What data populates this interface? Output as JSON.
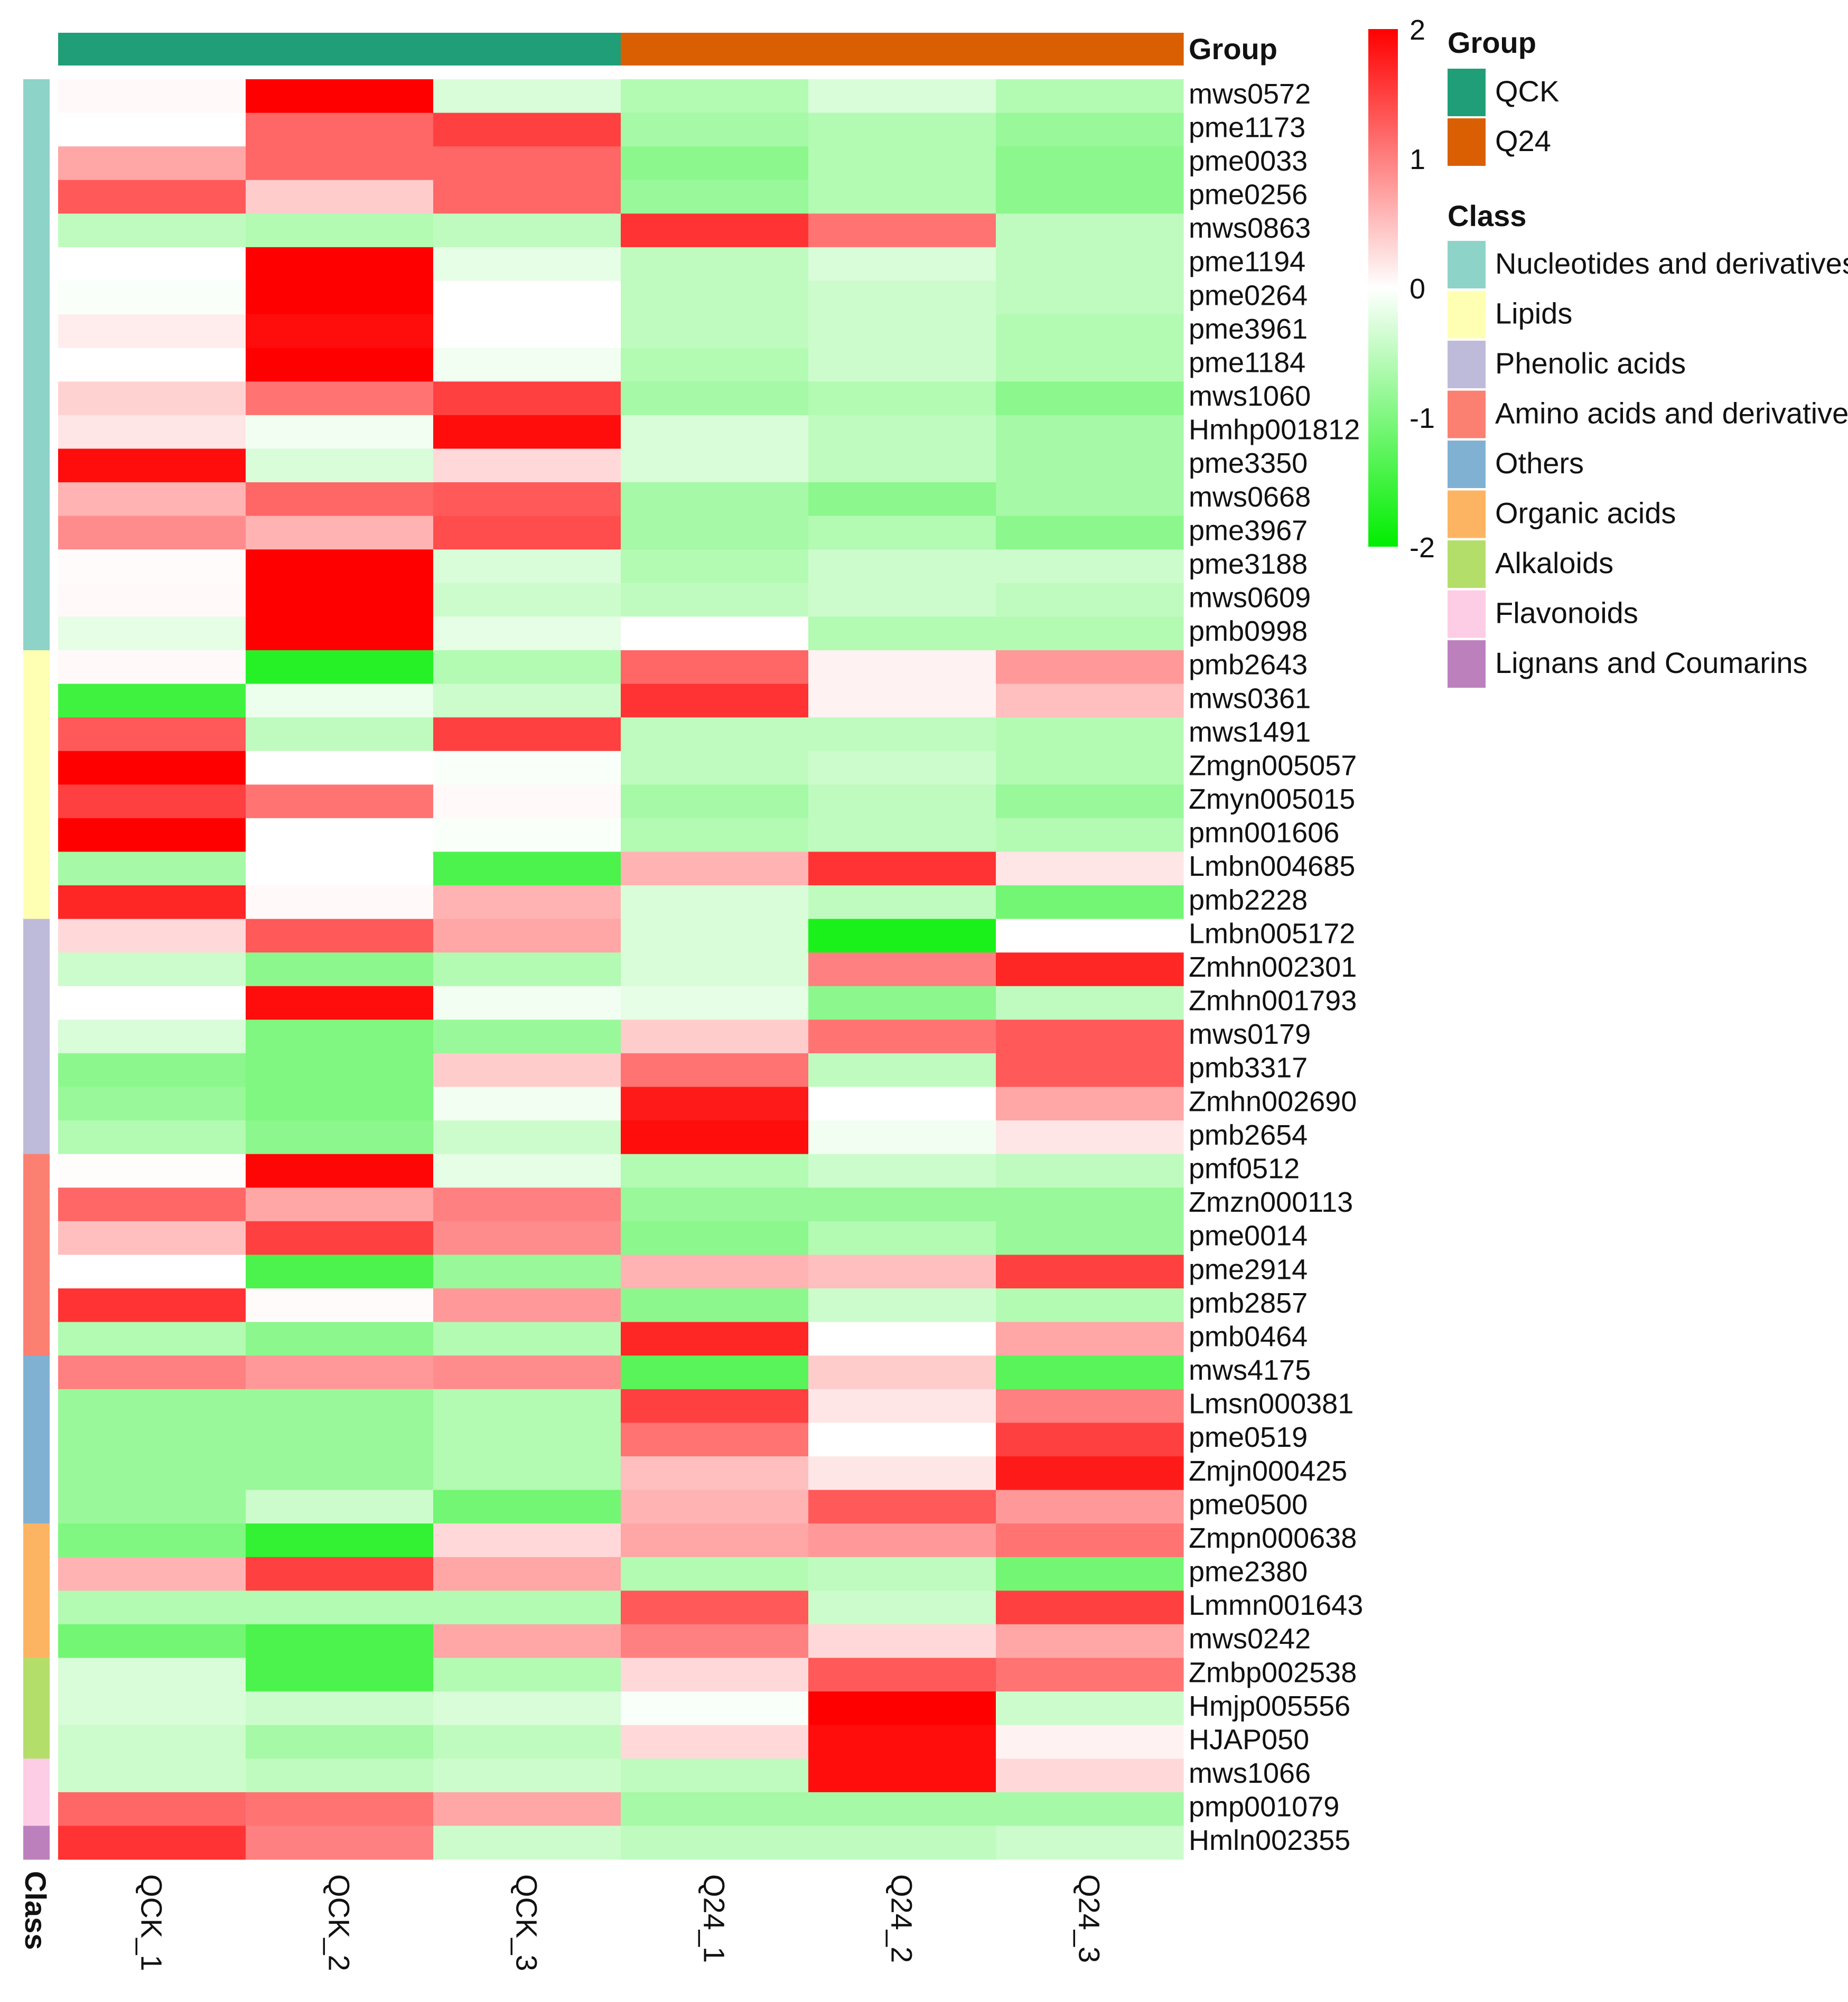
{
  "chart_data": {
    "type": "heatmap",
    "columns": [
      "QCK_1",
      "QCK_2",
      "QCK_3",
      "Q24_1",
      "Q24_2",
      "Q24_3"
    ],
    "column_groups": [
      "QCK",
      "QCK",
      "QCK",
      "Q24",
      "Q24",
      "Q24"
    ],
    "rows": [
      "mws0572",
      "pme1173",
      "pme0033",
      "pme0256",
      "mws0863",
      "pme1194",
      "pme0264",
      "pme3961",
      "pme1184",
      "mws1060",
      "Hmhp001812",
      "pme3350",
      "mws0668",
      "pme3967",
      "pme3188",
      "mws0609",
      "pmb0998",
      "pmb2643",
      "mws0361",
      "mws1491",
      "Zmgn005057",
      "Zmyn005015",
      "pmn001606",
      "Lmbn004685",
      "pmb2228",
      "Lmbn005172",
      "Zmhn002301",
      "Zmhn001793",
      "mws0179",
      "pmb3317",
      "Zmhn002690",
      "pmb2654",
      "pmf0512",
      "Zmzn000113",
      "pme0014",
      "pme2914",
      "pmb2857",
      "pmb0464",
      "mws4175",
      "Lmsn000381",
      "pme0519",
      "Zmjn000425",
      "pme0500",
      "Zmpn000638",
      "pme2380",
      "Lmmn001643",
      "mws0242",
      "Zmbp002538",
      "Hmjp005556",
      "HJAP050",
      "mws1066",
      "pmp001079",
      "Hmln002355"
    ],
    "row_classes": [
      "Nucleotides and derivatives",
      "Nucleotides and derivatives",
      "Nucleotides and derivatives",
      "Nucleotides and derivatives",
      "Nucleotides and derivatives",
      "Nucleotides and derivatives",
      "Nucleotides and derivatives",
      "Nucleotides and derivatives",
      "Nucleotides and derivatives",
      "Nucleotides and derivatives",
      "Nucleotides and derivatives",
      "Nucleotides and derivatives",
      "Nucleotides and derivatives",
      "Nucleotides and derivatives",
      "Nucleotides and derivatives",
      "Nucleotides and derivatives",
      "Nucleotides and derivatives",
      "Lipids",
      "Lipids",
      "Lipids",
      "Lipids",
      "Lipids",
      "Lipids",
      "Lipids",
      "Lipids",
      "Phenolic acids",
      "Phenolic acids",
      "Phenolic acids",
      "Phenolic acids",
      "Phenolic acids",
      "Phenolic acids",
      "Phenolic acids",
      "Amino acids and derivatives",
      "Amino acids and derivatives",
      "Amino acids and derivatives",
      "Amino acids and derivatives",
      "Amino acids and derivatives",
      "Amino acids and derivatives",
      "Others",
      "Others",
      "Others",
      "Others",
      "Others",
      "Organic acids",
      "Organic acids",
      "Organic acids",
      "Organic acids",
      "Alkaloids",
      "Alkaloids",
      "Alkaloids",
      "Flavonoids",
      "Flavonoids",
      "Lignans and Coumarins"
    ],
    "values": [
      [
        0.05,
        2.0,
        -0.3,
        -0.6,
        -0.3,
        -0.6
      ],
      [
        0.0,
        1.2,
        1.5,
        -0.7,
        -0.6,
        -0.8
      ],
      [
        0.7,
        1.2,
        1.2,
        -0.9,
        -0.6,
        -0.9
      ],
      [
        1.3,
        0.4,
        1.2,
        -0.8,
        -0.6,
        -0.9
      ],
      [
        -0.5,
        -0.6,
        -0.5,
        1.6,
        1.1,
        -0.5
      ],
      [
        0.0,
        2.0,
        -0.2,
        -0.5,
        -0.3,
        -0.5
      ],
      [
        -0.05,
        2.0,
        0.0,
        -0.5,
        -0.4,
        -0.5
      ],
      [
        0.15,
        1.9,
        0.0,
        -0.5,
        -0.4,
        -0.6
      ],
      [
        0.0,
        2.0,
        -0.1,
        -0.6,
        -0.4,
        -0.6
      ],
      [
        0.35,
        1.1,
        1.5,
        -0.7,
        -0.6,
        -0.9
      ],
      [
        0.2,
        -0.1,
        1.9,
        -0.3,
        -0.5,
        -0.7
      ],
      [
        1.9,
        -0.3,
        0.3,
        -0.3,
        -0.5,
        -0.7
      ],
      [
        0.6,
        1.2,
        1.3,
        -0.7,
        -0.9,
        -0.7
      ],
      [
        0.9,
        0.6,
        1.4,
        -0.7,
        -0.6,
        -0.9
      ],
      [
        0.03,
        2.0,
        -0.3,
        -0.6,
        -0.4,
        -0.4
      ],
      [
        0.05,
        2.0,
        -0.4,
        -0.5,
        -0.4,
        -0.5
      ],
      [
        -0.2,
        2.0,
        -0.2,
        0.0,
        -0.6,
        -0.6
      ],
      [
        0.05,
        -1.7,
        -0.6,
        1.2,
        0.1,
        0.8
      ],
      [
        -1.5,
        -0.15,
        -0.4,
        1.6,
        0.1,
        0.5
      ],
      [
        1.3,
        -0.5,
        1.5,
        -0.5,
        -0.5,
        -0.6
      ],
      [
        2.0,
        0.0,
        -0.05,
        -0.5,
        -0.4,
        -0.6
      ],
      [
        1.5,
        1.1,
        0.05,
        -0.7,
        -0.5,
        -0.8
      ],
      [
        2.0,
        0.0,
        -0.05,
        -0.6,
        -0.5,
        -0.6
      ],
      [
        -0.7,
        0.0,
        -1.4,
        0.6,
        1.6,
        0.2
      ],
      [
        1.7,
        0.05,
        0.6,
        -0.3,
        -0.5,
        -1.1
      ],
      [
        0.3,
        1.3,
        0.7,
        -0.3,
        -1.8,
        0.0
      ],
      [
        -0.4,
        -0.9,
        -0.6,
        -0.3,
        1.0,
        1.7
      ],
      [
        0.0,
        1.9,
        -0.1,
        -0.2,
        -0.9,
        -0.5
      ],
      [
        -0.3,
        -1.0,
        -0.8,
        0.4,
        1.1,
        1.3
      ],
      [
        -0.9,
        -1.0,
        0.4,
        1.1,
        -0.5,
        1.3
      ],
      [
        -0.8,
        -1.0,
        -0.1,
        1.8,
        0.0,
        0.7
      ],
      [
        -0.6,
        -0.9,
        -0.4,
        1.9,
        -0.1,
        0.2
      ],
      [
        0.02,
        1.95,
        -0.2,
        -0.6,
        -0.4,
        -0.5
      ],
      [
        1.2,
        0.7,
        1.0,
        -0.8,
        -0.8,
        -0.8
      ],
      [
        0.5,
        1.5,
        0.9,
        -0.9,
        -0.6,
        -0.8
      ],
      [
        0.0,
        -1.4,
        -0.8,
        0.6,
        0.5,
        1.5
      ],
      [
        1.6,
        0.03,
        0.8,
        -0.9,
        -0.4,
        -0.6
      ],
      [
        -0.6,
        -0.9,
        -0.6,
        1.7,
        0.0,
        0.7
      ],
      [
        1.0,
        0.8,
        0.9,
        -1.3,
        0.4,
        -1.3
      ],
      [
        -0.8,
        -0.8,
        -0.6,
        1.5,
        0.2,
        1.0
      ],
      [
        -0.8,
        -0.8,
        -0.6,
        1.1,
        0.0,
        1.5
      ],
      [
        -0.8,
        -0.8,
        -0.6,
        0.5,
        0.2,
        1.8
      ],
      [
        -0.8,
        -0.4,
        -1.1,
        0.6,
        1.3,
        0.8
      ],
      [
        -1.0,
        -1.6,
        0.3,
        0.7,
        0.8,
        1.1
      ],
      [
        0.6,
        1.5,
        0.7,
        -0.6,
        -0.5,
        -1.1
      ],
      [
        -0.6,
        -0.6,
        -0.6,
        1.3,
        -0.4,
        1.5
      ],
      [
        -1.1,
        -1.4,
        0.7,
        1.0,
        0.3,
        0.7
      ],
      [
        -0.3,
        -1.4,
        -0.6,
        0.3,
        1.3,
        1.1
      ],
      [
        -0.3,
        -0.4,
        -0.3,
        -0.05,
        2.0,
        -0.4
      ],
      [
        -0.4,
        -0.7,
        -0.5,
        0.3,
        1.9,
        0.1
      ],
      [
        -0.4,
        -0.5,
        -0.4,
        -0.5,
        1.9,
        0.3
      ],
      [
        1.2,
        1.1,
        0.7,
        -0.7,
        -0.7,
        -0.7
      ],
      [
        1.6,
        1.0,
        -0.4,
        -0.5,
        -0.5,
        -0.4
      ]
    ],
    "color_scale": {
      "min": -2,
      "max": 2,
      "low": "#00ee00",
      "mid": "#ffffff",
      "high": "#ff0000"
    },
    "colorbar_ticks": [
      "2",
      "1",
      "0",
      "-1",
      "-2"
    ],
    "group_legend": {
      "title": "Group",
      "items": [
        {
          "label": "QCK",
          "color": "#1f9e78"
        },
        {
          "label": "Q24",
          "color": "#d95f02"
        }
      ]
    },
    "class_legend": {
      "title": "Class",
      "items": [
        {
          "label": "Nucleotides and derivatives",
          "color": "#8dd3c7"
        },
        {
          "label": "Lipids",
          "color": "#ffffb3"
        },
        {
          "label": "Phenolic acids",
          "color": "#bebada"
        },
        {
          "label": "Amino acids and derivatives",
          "color": "#fb8072"
        },
        {
          "label": "Others",
          "color": "#80b1d3"
        },
        {
          "label": "Organic acids",
          "color": "#fdb462"
        },
        {
          "label": "Alkaloids",
          "color": "#b3de69"
        },
        {
          "label": "Flavonoids",
          "color": "#fccde5"
        },
        {
          "label": "Lignans and Coumarins",
          "color": "#bc80bd"
        }
      ]
    },
    "group_bar_label": "Group",
    "class_bar_label": "Class"
  }
}
